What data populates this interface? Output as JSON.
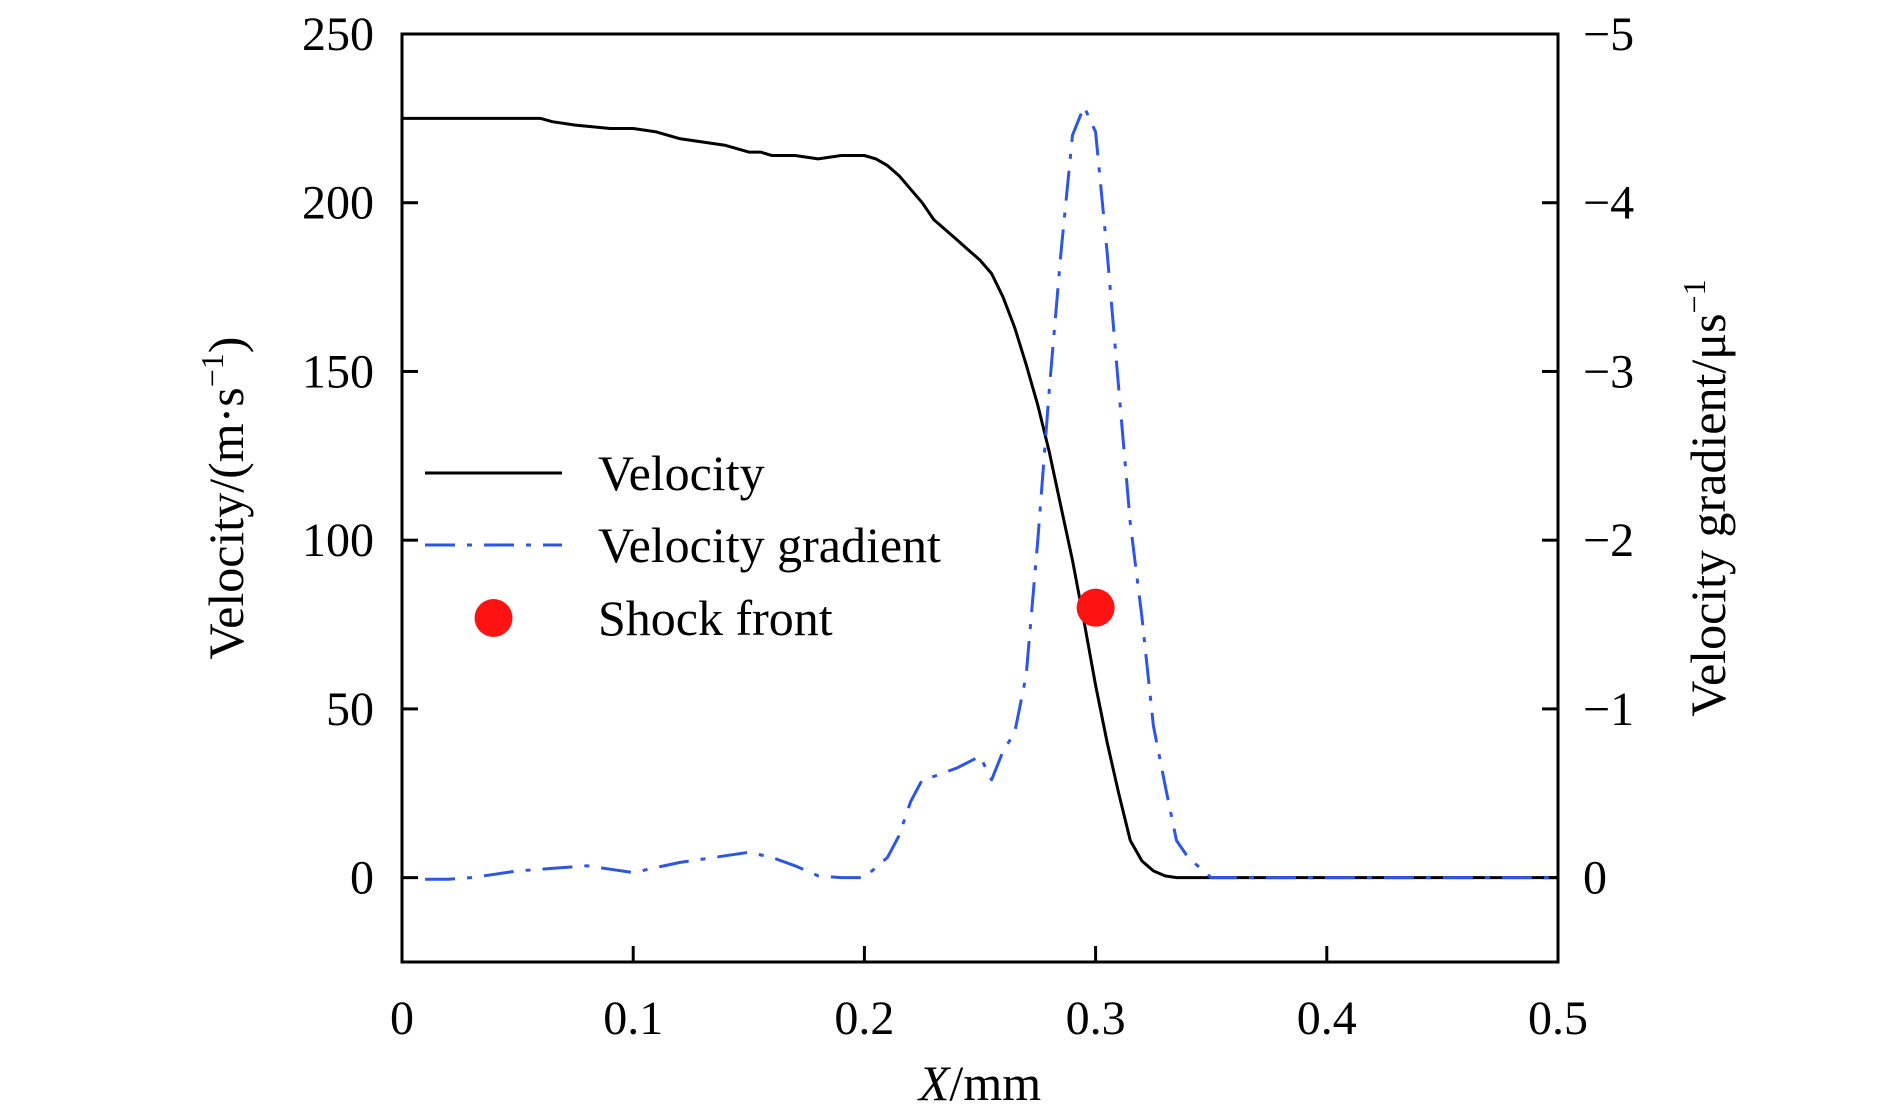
{
  "chart_data": {
    "type": "line",
    "xlabel_italic": "X",
    "xlabel_rest": "/mm",
    "ylabel": "Velocity/(m·s",
    "ylabel_sup": "−1",
    "ylabel_close": ")",
    "y2label": "Velocity gradient/μs",
    "y2label_sup": "−1",
    "xlim": [
      0,
      0.5
    ],
    "ylim": [
      -25,
      250
    ],
    "y2lim": [
      0.5,
      -5
    ],
    "x_ticks": [
      0,
      0.1,
      0.2,
      0.3,
      0.4,
      0.5
    ],
    "x_tick_labels": [
      "0",
      "0.1",
      "0.2",
      "0.3",
      "0.4",
      "0.5"
    ],
    "y_ticks": [
      0,
      50,
      100,
      150,
      200,
      250
    ],
    "y_tick_labels": [
      "0",
      "50",
      "100",
      "150",
      "200",
      "250"
    ],
    "y2_ticks": [
      0,
      -1,
      -2,
      -3,
      -4,
      -5
    ],
    "y2_tick_labels": [
      "0",
      "−1",
      "−2",
      "−3",
      "−4",
      "−5"
    ],
    "legend_position": "center-left",
    "series": [
      {
        "name": "Velocity",
        "axis": "left",
        "color": "#000000",
        "style": "solid",
        "x": [
          0,
          0.06,
          0.065,
          0.075,
          0.09,
          0.1,
          0.11,
          0.12,
          0.13,
          0.14,
          0.15,
          0.155,
          0.16,
          0.17,
          0.18,
          0.19,
          0.2,
          0.205,
          0.21,
          0.215,
          0.22,
          0.225,
          0.23,
          0.24,
          0.245,
          0.25,
          0.255,
          0.26,
          0.265,
          0.27,
          0.275,
          0.28,
          0.285,
          0.29,
          0.295,
          0.3,
          0.305,
          0.31,
          0.315,
          0.32,
          0.325,
          0.33,
          0.335,
          0.34,
          0.35,
          0.5
        ],
        "y": [
          225,
          225,
          224,
          223,
          222,
          222,
          221,
          219,
          218,
          217,
          215,
          215,
          214,
          214,
          213,
          214,
          214,
          213,
          211,
          208,
          204,
          200,
          195,
          189,
          186,
          183,
          179,
          172,
          163,
          152,
          140,
          126,
          110,
          94,
          76,
          57,
          40,
          25,
          11,
          5,
          2,
          0.5,
          0,
          0,
          0,
          0
        ]
      },
      {
        "name": "Velocity gradient",
        "axis": "right",
        "color": "#2d55e6",
        "style": "dashdot",
        "x": [
          0.01,
          0.02,
          0.03,
          0.04,
          0.05,
          0.06,
          0.07,
          0.08,
          0.09,
          0.1,
          0.11,
          0.12,
          0.13,
          0.14,
          0.15,
          0.16,
          0.17,
          0.18,
          0.19,
          0.2,
          0.21,
          0.215,
          0.22,
          0.225,
          0.23,
          0.24,
          0.25,
          0.255,
          0.26,
          0.265,
          0.27,
          0.275,
          0.28,
          0.285,
          0.29,
          0.295,
          0.3,
          0.305,
          0.31,
          0.315,
          0.32,
          0.325,
          0.33,
          0.335,
          0.34,
          0.35,
          0.5
        ],
        "y": [
          0.01,
          0.01,
          0,
          -0.02,
          -0.04,
          -0.05,
          -0.06,
          -0.07,
          -0.05,
          -0.03,
          -0.06,
          -0.09,
          -0.11,
          -0.13,
          -0.15,
          -0.12,
          -0.07,
          -0.01,
          0,
          0,
          -0.12,
          -0.25,
          -0.45,
          -0.58,
          -0.6,
          -0.65,
          -0.72,
          -0.58,
          -0.75,
          -0.86,
          -1.2,
          -2.0,
          -2.9,
          -3.7,
          -4.4,
          -4.57,
          -4.42,
          -3.7,
          -2.9,
          -2.1,
          -1.55,
          -0.9,
          -0.55,
          -0.22,
          -0.12,
          0,
          0
        ]
      },
      {
        "name": "Shock front",
        "axis": "left",
        "color": "#ff1212",
        "style": "marker",
        "x": [
          0.3
        ],
        "y": [
          80
        ]
      }
    ]
  }
}
